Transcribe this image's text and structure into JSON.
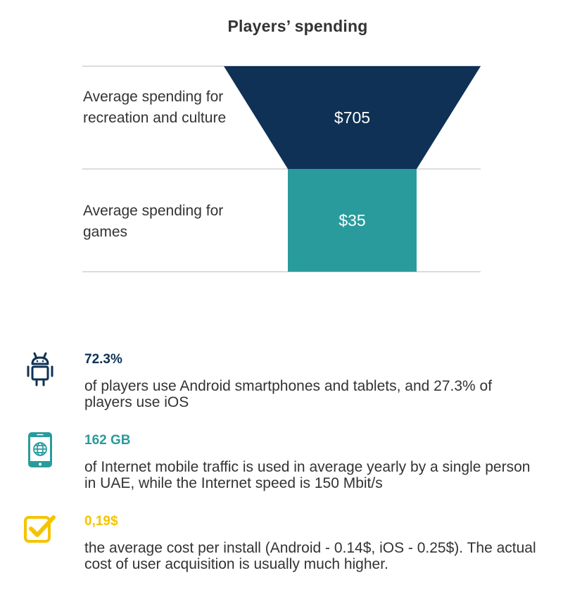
{
  "colors": {
    "navy": "#0e3155",
    "teal": "#2a9b9d",
    "yellow": "#f5c400",
    "text": "#333333",
    "divider": "#d0d0d0"
  },
  "chart_data": {
    "type": "funnel",
    "title": "Players’ spending",
    "stages": [
      {
        "label": "Average spending for recreation and culture",
        "value": 705,
        "display": "$705"
      },
      {
        "label": "Average spending for games",
        "value": 35,
        "display": "$35"
      }
    ]
  },
  "stats": [
    {
      "icon": "android-icon",
      "value": "72.3%",
      "desc": "of players use Android smartphones and tablets, and 27.3% of players use iOS"
    },
    {
      "icon": "mobile-globe-icon",
      "value": "162 GB",
      "desc": "of Internet mobile traffic is used in average yearly by a single person in UAE, while the Internet speed is 150 Mbit/s"
    },
    {
      "icon": "checkbox-icon",
      "value": "0,19$",
      "desc": "the average cost per install (Android - 0.14$, iOS - 0.25$). The actual cost of user acquisition is usually much higher."
    }
  ]
}
